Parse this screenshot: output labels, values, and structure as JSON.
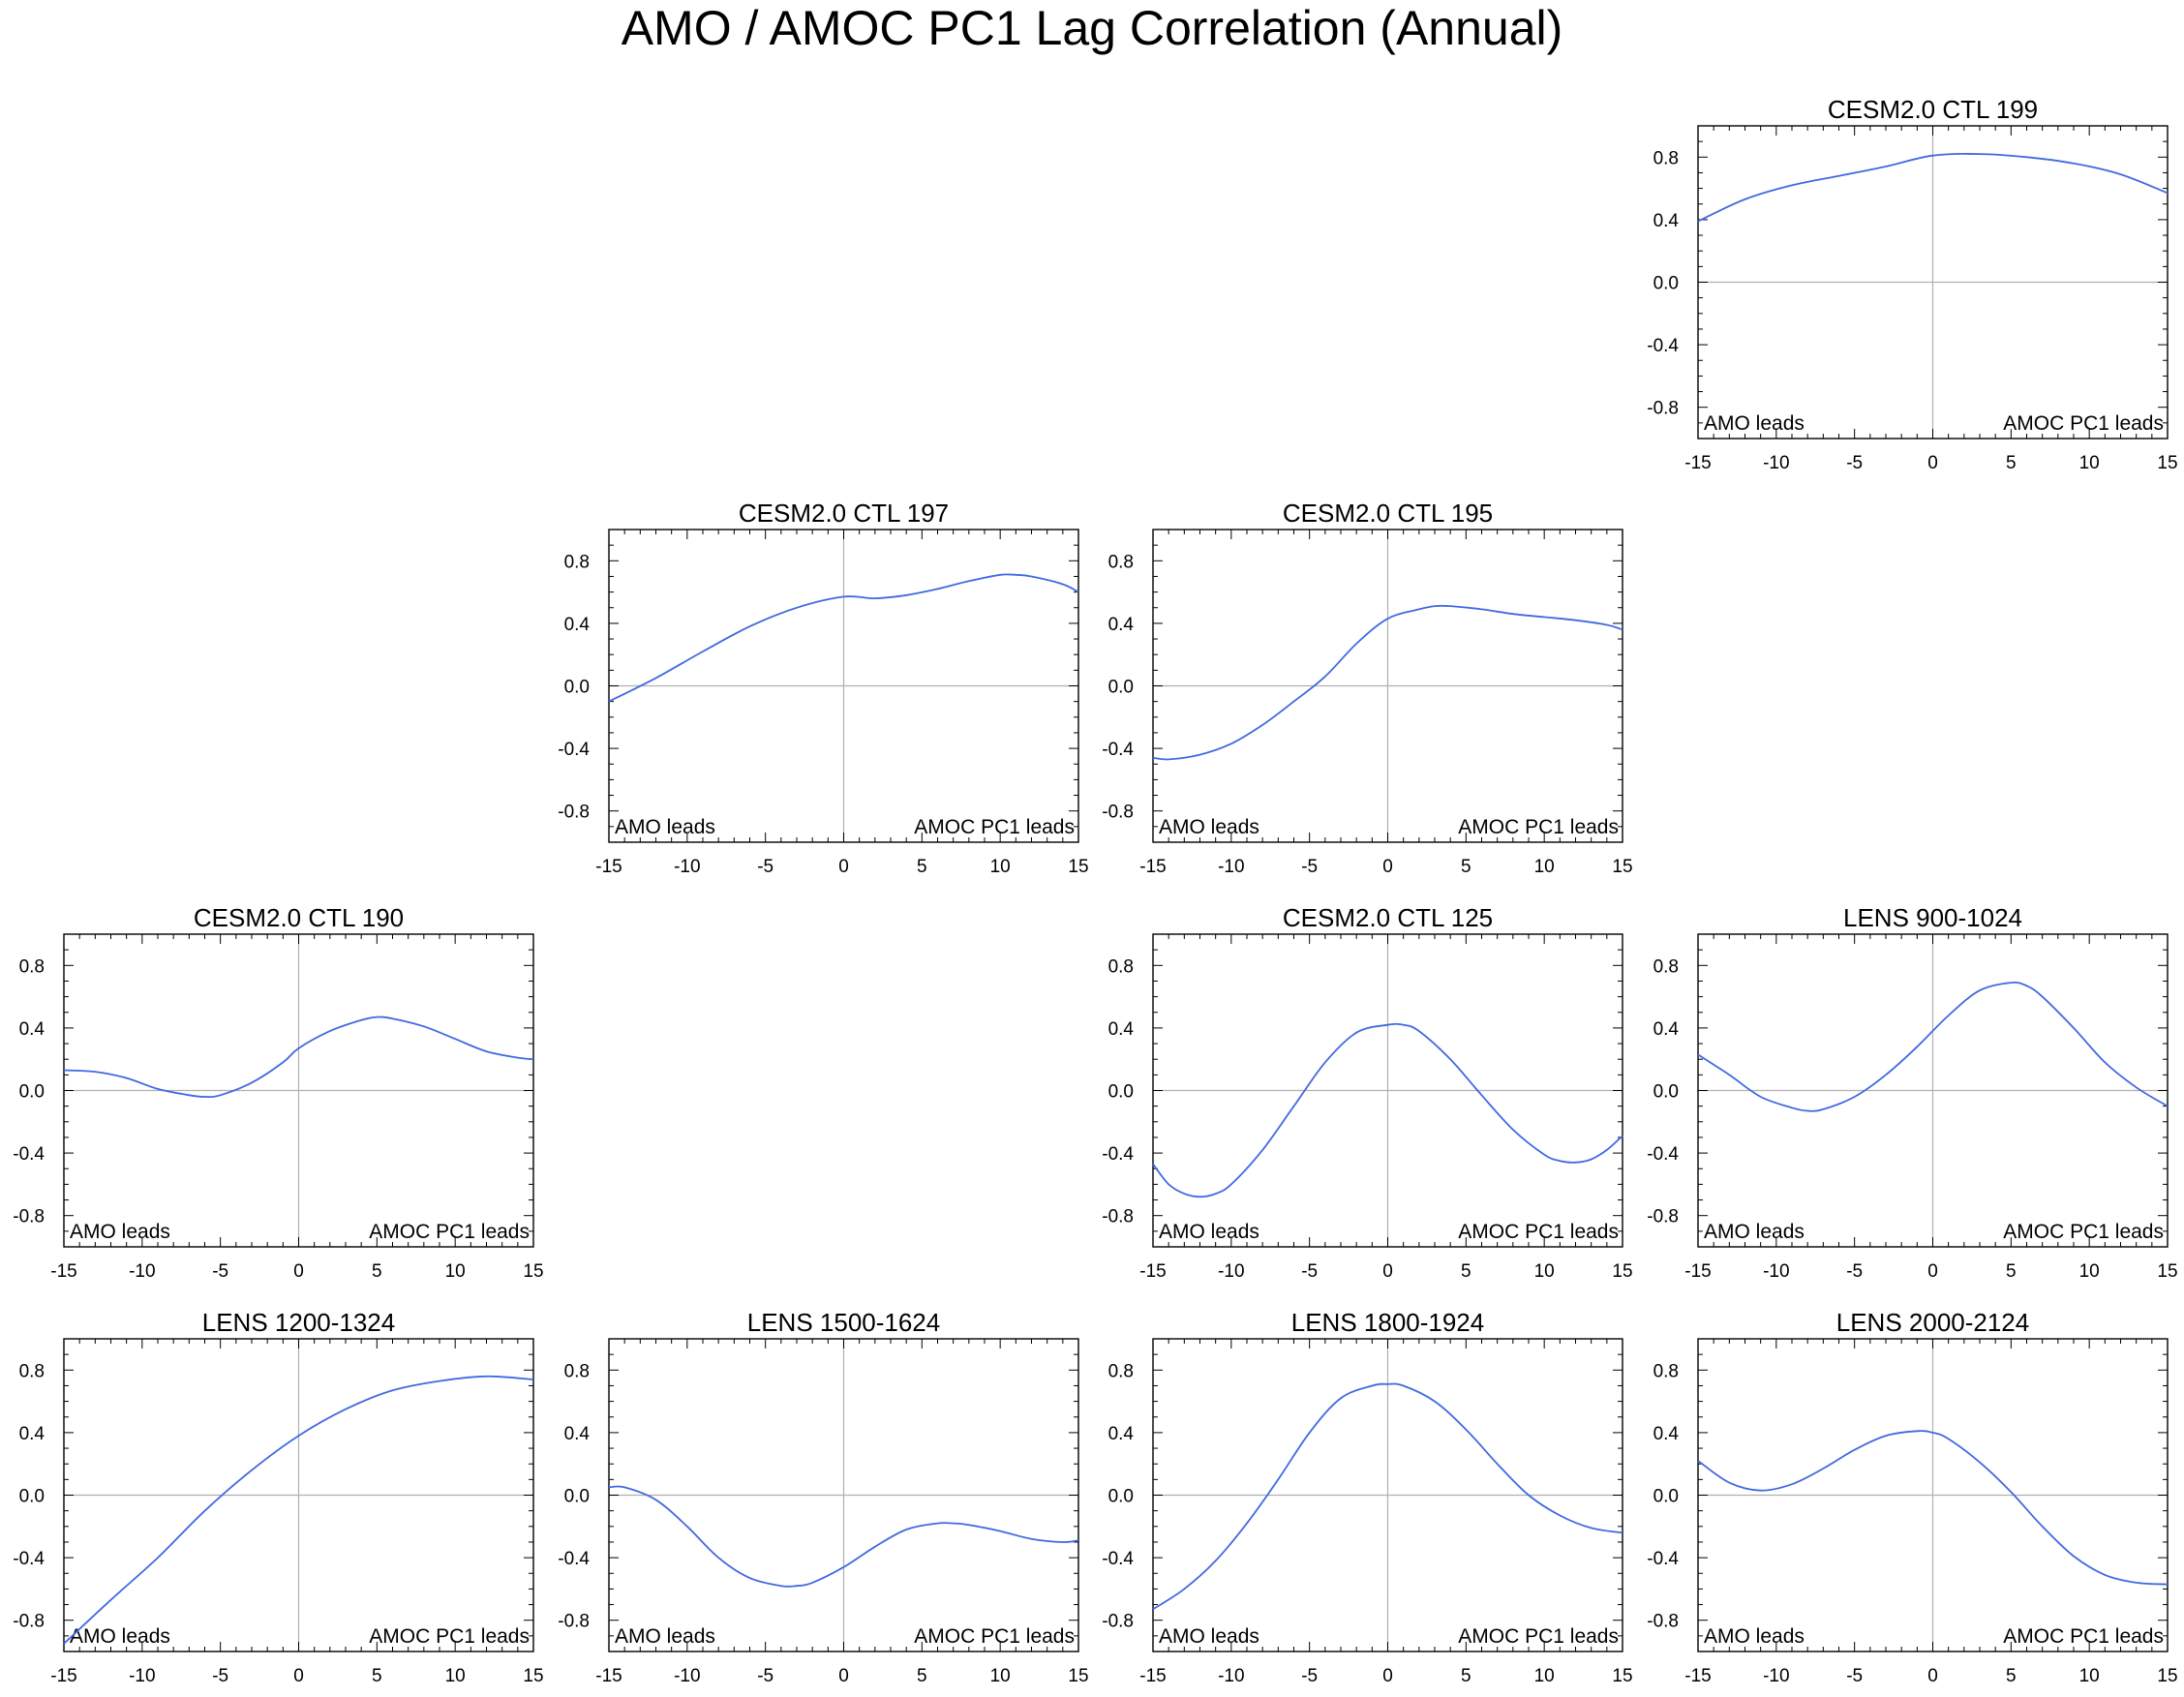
{
  "title": "AMO / AMOC PC1 Lag Correlation (Annual)",
  "line_color": "#4169e1",
  "zero_line_color": "#b0b0b0",
  "chart_data": [
    {
      "type": "line",
      "title": "CESM2.0 CTL 199",
      "xlabel": "",
      "ylabel": "",
      "xlim": [
        -15,
        15
      ],
      "ylim": [
        -1,
        1
      ],
      "xticks": [
        "-15",
        "-10",
        "-5",
        "0",
        "5",
        "10",
        "15"
      ],
      "yticks": [
        "0.8",
        "0.4",
        "0.0",
        "-0.4",
        "-0.8"
      ],
      "left_annotation": "AMO leads",
      "right_annotation": "AMOC PC1 leads",
      "x": [
        -15,
        -12,
        -9,
        -6,
        -3,
        0,
        3,
        6,
        9,
        12,
        15
      ],
      "values": [
        0.39,
        0.53,
        0.62,
        0.68,
        0.74,
        0.81,
        0.82,
        0.8,
        0.76,
        0.69,
        0.57
      ]
    },
    {
      "type": "line",
      "title": "CESM2.0 CTL 197",
      "xlabel": "",
      "ylabel": "",
      "xlim": [
        -15,
        15
      ],
      "ylim": [
        -1,
        1
      ],
      "xticks": [
        "-15",
        "-10",
        "-5",
        "0",
        "5",
        "10",
        "15"
      ],
      "yticks": [
        "0.8",
        "0.4",
        "0.0",
        "-0.4",
        "-0.8"
      ],
      "left_annotation": "AMO leads",
      "right_annotation": "AMOC PC1 leads",
      "x": [
        -15,
        -12,
        -9,
        -6,
        -3,
        0,
        2,
        4,
        6,
        8,
        10,
        11,
        12,
        14,
        15
      ],
      "values": [
        -0.1,
        0.05,
        0.22,
        0.38,
        0.5,
        0.57,
        0.56,
        0.58,
        0.62,
        0.67,
        0.71,
        0.71,
        0.7,
        0.65,
        0.6
      ]
    },
    {
      "type": "line",
      "title": "CESM2.0 CTL 195",
      "xlabel": "",
      "ylabel": "",
      "xlim": [
        -15,
        15
      ],
      "ylim": [
        -1,
        1
      ],
      "xticks": [
        "-15",
        "-10",
        "-5",
        "0",
        "5",
        "10",
        "15"
      ],
      "yticks": [
        "0.8",
        "0.4",
        "0.0",
        "-0.4",
        "-0.8"
      ],
      "left_annotation": "AMO leads",
      "right_annotation": "AMOC PC1 leads",
      "x": [
        -15,
        -14,
        -12,
        -10,
        -8,
        -6,
        -4,
        -2,
        0,
        2,
        3,
        4,
        6,
        8,
        10,
        12,
        14,
        15
      ],
      "values": [
        -0.46,
        -0.47,
        -0.44,
        -0.37,
        -0.25,
        -0.1,
        0.06,
        0.27,
        0.43,
        0.49,
        0.51,
        0.51,
        0.49,
        0.46,
        0.44,
        0.42,
        0.39,
        0.36
      ]
    },
    {
      "type": "line",
      "title": "CESM2.0 CTL 190",
      "xlabel": "",
      "ylabel": "",
      "xlim": [
        -15,
        15
      ],
      "ylim": [
        -1,
        1
      ],
      "xticks": [
        "-15",
        "-10",
        "-5",
        "0",
        "5",
        "10",
        "15"
      ],
      "yticks": [
        "0.8",
        "0.4",
        "0.0",
        "-0.4",
        "-0.8"
      ],
      "left_annotation": "AMO leads",
      "right_annotation": "AMOC PC1 leads",
      "x": [
        -15,
        -13,
        -11,
        -9,
        -7,
        -6,
        -5,
        -3,
        -1,
        0,
        2,
        4,
        5,
        6,
        8,
        10,
        12,
        14,
        15
      ],
      "values": [
        0.13,
        0.12,
        0.08,
        0.01,
        -0.03,
        -0.04,
        -0.03,
        0.05,
        0.18,
        0.27,
        0.38,
        0.45,
        0.47,
        0.46,
        0.41,
        0.33,
        0.25,
        0.21,
        0.2
      ]
    },
    {
      "type": "line",
      "title": "CESM2.0 CTL 125",
      "xlabel": "",
      "ylabel": "",
      "xlim": [
        -15,
        15
      ],
      "ylim": [
        -1,
        1
      ],
      "xticks": [
        "-15",
        "-10",
        "-5",
        "0",
        "5",
        "10",
        "15"
      ],
      "yticks": [
        "0.8",
        "0.4",
        "0.0",
        "-0.4",
        "-0.8"
      ],
      "left_annotation": "AMO leads",
      "right_annotation": "AMOC PC1 leads",
      "x": [
        -15,
        -14,
        -13,
        -12,
        -11,
        -10,
        -8,
        -6,
        -4,
        -2,
        0,
        1,
        2,
        4,
        6,
        8,
        10,
        11,
        12,
        13,
        14,
        15
      ],
      "values": [
        -0.47,
        -0.6,
        -0.66,
        -0.68,
        -0.66,
        -0.6,
        -0.38,
        -0.1,
        0.18,
        0.37,
        0.42,
        0.42,
        0.38,
        0.2,
        -0.03,
        -0.25,
        -0.41,
        -0.45,
        -0.46,
        -0.44,
        -0.38,
        -0.29
      ]
    },
    {
      "type": "line",
      "title": "LENS 900-1024",
      "xlabel": "",
      "ylabel": "",
      "xlim": [
        -15,
        15
      ],
      "ylim": [
        -1,
        1
      ],
      "xticks": [
        "-15",
        "-10",
        "-5",
        "0",
        "5",
        "10",
        "15"
      ],
      "yticks": [
        "0.8",
        "0.4",
        "0.0",
        "-0.4",
        "-0.8"
      ],
      "left_annotation": "AMO leads",
      "right_annotation": "AMOC PC1 leads",
      "x": [
        -15,
        -13,
        -11,
        -9,
        -8,
        -7,
        -5,
        -3,
        -1,
        1,
        3,
        5,
        6,
        7,
        9,
        11,
        13,
        15
      ],
      "values": [
        0.23,
        0.1,
        -0.04,
        -0.11,
        -0.13,
        -0.12,
        -0.04,
        0.1,
        0.28,
        0.48,
        0.64,
        0.69,
        0.67,
        0.6,
        0.4,
        0.18,
        0.02,
        -0.1
      ]
    },
    {
      "type": "line",
      "title": "LENS 1200-1324",
      "xlabel": "",
      "ylabel": "",
      "xlim": [
        -15,
        15
      ],
      "ylim": [
        -1,
        1
      ],
      "xticks": [
        "-15",
        "-10",
        "-5",
        "0",
        "5",
        "10",
        "15"
      ],
      "yticks": [
        "0.8",
        "0.4",
        "0.0",
        "-0.4",
        "-0.8"
      ],
      "left_annotation": "AMO leads",
      "right_annotation": "AMOC PC1 leads",
      "x": [
        -15,
        -12,
        -9,
        -6,
        -3,
        0,
        3,
        6,
        9,
        12,
        15
      ],
      "values": [
        -0.95,
        -0.67,
        -0.4,
        -0.1,
        0.16,
        0.38,
        0.55,
        0.67,
        0.73,
        0.76,
        0.74
      ]
    },
    {
      "type": "line",
      "title": "LENS 1500-1624",
      "xlabel": "",
      "ylabel": "",
      "xlim": [
        -15,
        15
      ],
      "ylim": [
        -1,
        1
      ],
      "xticks": [
        "-15",
        "-10",
        "-5",
        "0",
        "5",
        "10",
        "15"
      ],
      "yticks": [
        "0.8",
        "0.4",
        "0.0",
        "-0.4",
        "-0.8"
      ],
      "left_annotation": "AMO leads",
      "right_annotation": "AMOC PC1 leads",
      "x": [
        -15,
        -14,
        -12,
        -10,
        -8,
        -6,
        -4,
        -3,
        -2,
        0,
        2,
        4,
        6,
        7,
        8,
        10,
        12,
        14,
        15
      ],
      "values": [
        0.05,
        0.05,
        -0.03,
        -0.2,
        -0.4,
        -0.53,
        -0.58,
        -0.58,
        -0.56,
        -0.46,
        -0.33,
        -0.22,
        -0.18,
        -0.18,
        -0.19,
        -0.23,
        -0.28,
        -0.3,
        -0.29
      ]
    },
    {
      "type": "line",
      "title": "LENS 1800-1924",
      "xlabel": "",
      "ylabel": "",
      "xlim": [
        -15,
        15
      ],
      "ylim": [
        -1,
        1
      ],
      "xticks": [
        "-15",
        "-10",
        "-5",
        "0",
        "5",
        "10",
        "15"
      ],
      "yticks": [
        "0.8",
        "0.4",
        "0.0",
        "-0.4",
        "-0.8"
      ],
      "left_annotation": "AMO leads",
      "right_annotation": "AMOC PC1 leads",
      "x": [
        -15,
        -13,
        -11,
        -9,
        -7,
        -5,
        -3,
        -1,
        0,
        1,
        3,
        5,
        7,
        9,
        11,
        13,
        15
      ],
      "values": [
        -0.73,
        -0.6,
        -0.42,
        -0.18,
        0.1,
        0.4,
        0.62,
        0.7,
        0.71,
        0.7,
        0.6,
        0.42,
        0.2,
        0.0,
        -0.13,
        -0.21,
        -0.24
      ]
    },
    {
      "type": "line",
      "title": "LENS 2000-2124",
      "xlabel": "",
      "ylabel": "",
      "xlim": [
        -15,
        15
      ],
      "ylim": [
        -1,
        1
      ],
      "xticks": [
        "-15",
        "-10",
        "-5",
        "0",
        "5",
        "10",
        "15"
      ],
      "yticks": [
        "0.8",
        "0.4",
        "0.0",
        "-0.4",
        "-0.8"
      ],
      "left_annotation": "AMO leads",
      "right_annotation": "AMOC PC1 leads",
      "x": [
        -15,
        -13,
        -11,
        -9,
        -7,
        -5,
        -3,
        -1,
        0,
        1,
        3,
        5,
        7,
        9,
        11,
        13,
        15
      ],
      "values": [
        0.22,
        0.08,
        0.03,
        0.07,
        0.17,
        0.29,
        0.38,
        0.41,
        0.4,
        0.36,
        0.21,
        0.02,
        -0.2,
        -0.39,
        -0.51,
        -0.56,
        -0.57
      ]
    }
  ]
}
